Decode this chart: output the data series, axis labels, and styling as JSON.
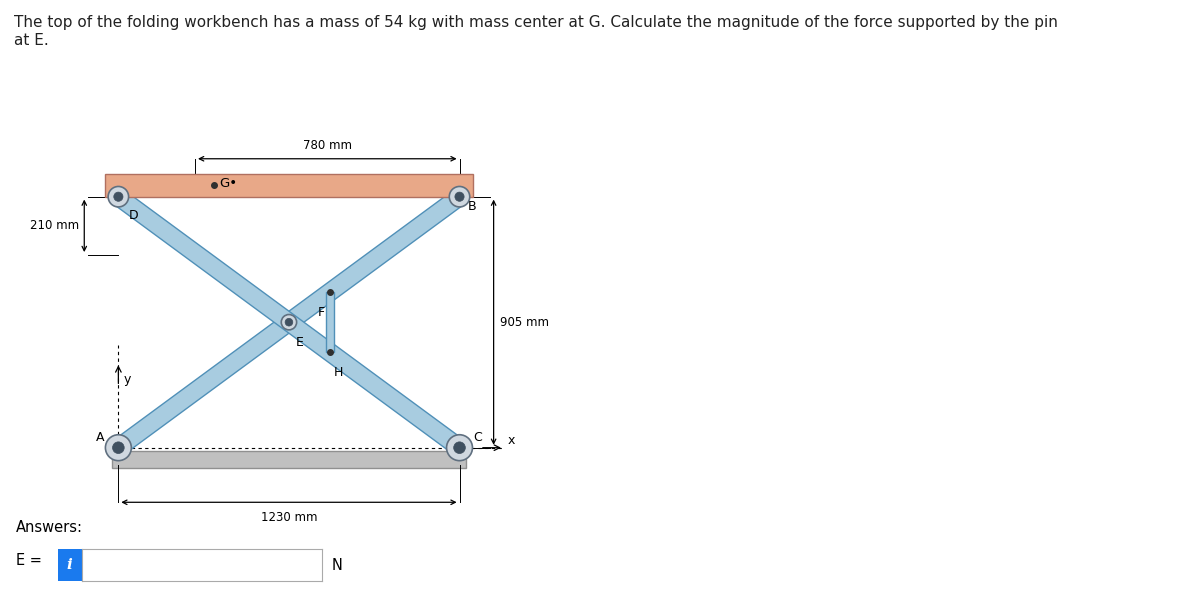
{
  "title_text": "The top of the folding workbench has a mass of 54 kg with mass center at G. Calculate the magnitude of the force supported by the pin\nat E.",
  "title_fontsize": 11,
  "fig_width": 12.0,
  "fig_height": 6.15,
  "bg_color": "#ffffff",
  "table_top_color": "#e8a888",
  "beam_color": "#a8cce0",
  "beam_edge_color": "#5090b8",
  "ground_color": "#c8c8c8",
  "dim_780": "780 mm",
  "dim_210": "210 mm",
  "dim_905": "905 mm",
  "dim_1230": "1230 mm",
  "answers_label": "Answers:",
  "E_label": "E =",
  "N_label": "N",
  "info_box_color": "#1a7aee",
  "text_color": "#222222"
}
